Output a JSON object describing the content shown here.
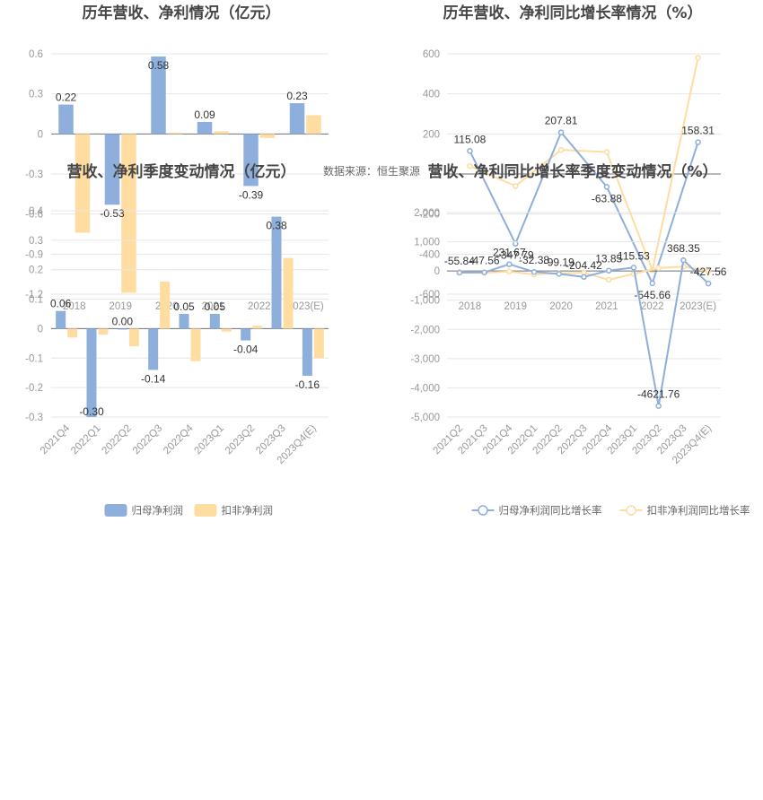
{
  "source_text": "数据来源：恒生聚源",
  "colors": {
    "blue": "#8eaedc",
    "yellow": "#ffdca0",
    "white": "#ffffff"
  },
  "chart_data": [
    {
      "type": "bar",
      "title": "历年营收、净利情况（亿元）",
      "categories": [
        "2018",
        "2019",
        "2020",
        "2021",
        "2022",
        "2023(E)"
      ],
      "yticks": [
        "0.6",
        "0.3",
        "0",
        "-0.3",
        "-0.6",
        "-0.9",
        "-1.2"
      ],
      "ylim": [
        -1.2,
        0.6
      ],
      "series": [
        {
          "name": "归母净利润",
          "values": [
            0.22,
            -0.53,
            0.58,
            0.09,
            -0.39,
            0.23
          ],
          "labels": [
            "0.22",
            "-0.53",
            "0.58",
            "0.09",
            "-0.39",
            "0.23"
          ]
        },
        {
          "name": "扣非净利润",
          "values": [
            -0.74,
            -1.19,
            0.01,
            0.02,
            -0.03,
            0.14
          ]
        }
      ],
      "legend": [
        "归母净利润",
        "扣非净利润"
      ]
    },
    {
      "type": "line",
      "title": "历年营收、净利同比增长率情况（%）",
      "categories": [
        "2018",
        "2019",
        "2020",
        "2021",
        "2022",
        "2023(E)"
      ],
      "yticks": [
        "600",
        "400",
        "200",
        "0",
        "-200",
        "-400",
        "-600"
      ],
      "ylim": [
        -600,
        600
      ],
      "series": [
        {
          "name": "归母净利润同比增长率",
          "values": [
            115.08,
            -347.79,
            207.81,
            -63.88,
            -545.66,
            158.31
          ],
          "labels": [
            "115.08",
            "-347.79",
            "207.81",
            "-63.88",
            "-545.66",
            "158.31"
          ]
        },
        {
          "name": "扣非净利润同比增长率",
          "values": [
            40,
            -60,
            120,
            110,
            -480,
            580
          ]
        }
      ],
      "legend": [
        "归母净利润同比增长率",
        "扣非净利润同比增长率"
      ]
    },
    {
      "type": "bar",
      "title": "营收、净利季度变动情况（亿元）",
      "categories": [
        "2021Q4",
        "2022Q1",
        "2022Q2",
        "2022Q3",
        "2022Q4",
        "2023Q1",
        "2023Q2",
        "2023Q3",
        "2023Q4(E)"
      ],
      "yticks": [
        "0.4",
        "0.3",
        "0.2",
        "0.1",
        "0",
        "-0.1",
        "-0.2",
        "-0.3"
      ],
      "ylim": [
        -0.3,
        0.4
      ],
      "series": [
        {
          "name": "归母净利润",
          "values": [
            0.06,
            -0.3,
            0.0,
            -0.14,
            0.05,
            0.05,
            -0.04,
            0.38,
            -0.16
          ],
          "labels": [
            "0.06",
            "-0.30",
            "0.00",
            "-0.14",
            "0.05",
            "0.05",
            "-0.04",
            "0.38",
            "-0.16"
          ]
        },
        {
          "name": "扣非净利润",
          "values": [
            -0.03,
            -0.02,
            -0.06,
            0.16,
            -0.11,
            -0.01,
            0.01,
            0.24,
            -0.1
          ]
        }
      ],
      "legend": [
        "归母净利润",
        "扣非净利润"
      ]
    },
    {
      "type": "line",
      "title": "营收、净利同比增长率季度变动情况（%）",
      "categories": [
        "2021Q2",
        "2021Q3",
        "2021Q4",
        "2022Q1",
        "2022Q2",
        "2022Q3",
        "2022Q4",
        "2023Q1",
        "2023Q2",
        "2023Q3",
        "2023Q4(E)"
      ],
      "yticks": [
        "2,000",
        "1,000",
        "0",
        "-1,000",
        "-2,000",
        "-3,000",
        "-4,000",
        "-5,000"
      ],
      "ylim": [
        -5000,
        2000
      ],
      "series": [
        {
          "name": "归母净利润同比增长率",
          "values": [
            -55.84,
            -47.56,
            231.67,
            -32.38,
            -99.19,
            -204.42,
            13.85,
            115.53,
            -4621.76,
            368.35,
            -427.56
          ],
          "labels": [
            "-55.84",
            "-47.56",
            "231.67",
            "-32.38",
            "-99.19",
            "-204.42",
            "13.85",
            "115.53",
            "-4621.76",
            "368.35",
            "-427.56"
          ]
        },
        {
          "name": "扣非净利润同比增长率",
          "values": [
            -40,
            -60,
            -20,
            -120,
            -80,
            -60,
            -300,
            -100,
            100,
            150,
            -10
          ]
        }
      ],
      "legend": [
        "归母净利润同比增长率",
        "扣非净利润同比增长率"
      ]
    }
  ]
}
